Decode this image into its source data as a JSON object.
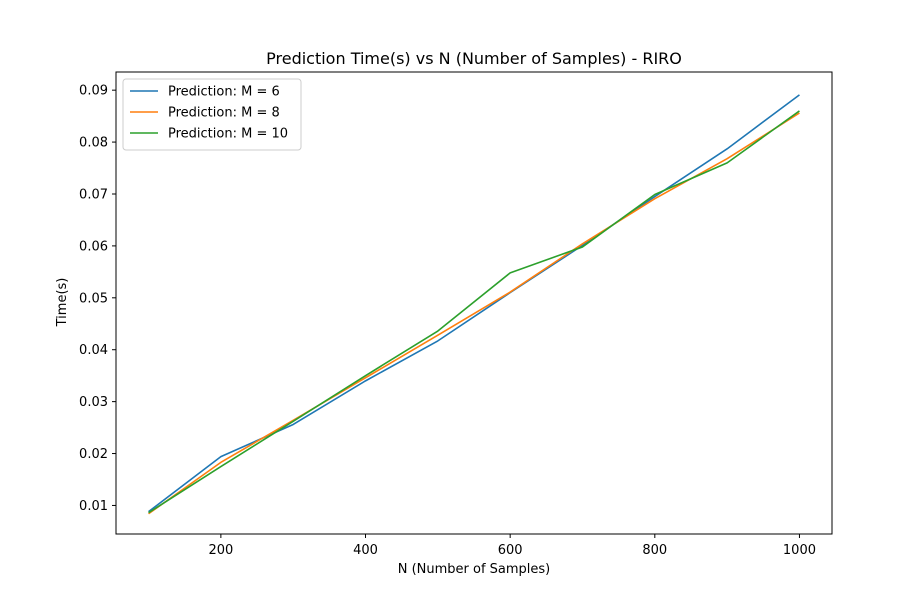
{
  "chart_data": {
    "type": "line",
    "title": "Prediction Time(s) vs N (Number of Samples) - RIRO",
    "xlabel": "N (Number of Samples)",
    "ylabel": "Time(s)",
    "xlim": [
      55,
      1045
    ],
    "ylim": [
      0.0045,
      0.0935
    ],
    "xticks": [
      200,
      400,
      600,
      800,
      1000
    ],
    "yticks": [
      0.01,
      0.02,
      0.03,
      0.04,
      0.05,
      0.06,
      0.07,
      0.08,
      0.09
    ],
    "xtick_labels": [
      "200",
      "400",
      "600",
      "800",
      "1000"
    ],
    "ytick_labels": [
      "0.01",
      "0.02",
      "0.03",
      "0.04",
      "0.05",
      "0.06",
      "0.07",
      "0.08",
      "0.09"
    ],
    "legend_position": "top-left",
    "grid": false,
    "x": [
      100,
      200,
      300,
      400,
      500,
      600,
      700,
      800,
      900,
      1000
    ],
    "series": [
      {
        "name": "Prediction: M = 6",
        "color": "#1f77b4",
        "values": [
          0.0088,
          0.0194,
          0.0256,
          0.034,
          0.0417,
          0.051,
          0.0601,
          0.0695,
          0.0787,
          0.0891
        ]
      },
      {
        "name": "Prediction: M = 8",
        "color": "#ff7f0e",
        "values": [
          0.0084,
          0.0183,
          0.0264,
          0.0346,
          0.0428,
          0.0511,
          0.0604,
          0.0691,
          0.0768,
          0.0856
        ]
      },
      {
        "name": "Prediction: M = 10",
        "color": "#2ca02c",
        "values": [
          0.0086,
          0.0175,
          0.0262,
          0.035,
          0.0436,
          0.0548,
          0.0598,
          0.0699,
          0.076,
          0.086
        ]
      }
    ]
  }
}
